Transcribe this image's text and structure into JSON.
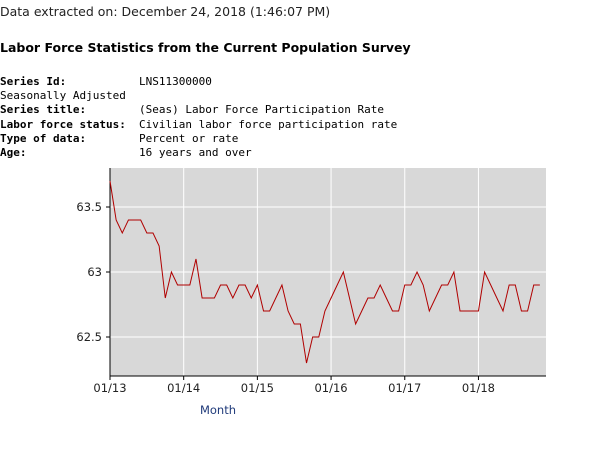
{
  "extract_line": "Data extracted on: December 24, 2018 (1:46:07 PM)",
  "page_title": "Labor Force Statistics from the Current Population Survey",
  "series_info": [
    {
      "label": "Series Id:",
      "value": "LNS11300000",
      "bold": true
    },
    {
      "label": "Seasonally Adjusted",
      "value": "",
      "bold": false
    },
    {
      "label": "Series title:",
      "value": "(Seas) Labor Force Participation Rate",
      "bold": true
    },
    {
      "label": "Labor force status:",
      "value": "Civilian labor force participation rate",
      "bold": true
    },
    {
      "label": "Type of data:",
      "value": "Percent or rate",
      "bold": true
    },
    {
      "label": "Age:",
      "value": "16 years and over",
      "bold": true
    }
  ],
  "colors": {
    "plot_background": "#d8d8d8",
    "grid": "#ffffff",
    "series_line": "#b00000",
    "axis": "#000000"
  },
  "chart_data": {
    "type": "line",
    "title": "",
    "xlabel": "Month",
    "ylabel": "",
    "x_range": [
      0,
      71
    ],
    "ylim": [
      62.2,
      63.8
    ],
    "y_ticks": [
      62.5,
      63,
      63.5
    ],
    "y_tick_labels": [
      "62.5",
      "63",
      "63.5"
    ],
    "x_ticks": [
      0,
      12,
      24,
      36,
      48,
      60
    ],
    "x_tick_labels": [
      "01/13",
      "01/14",
      "01/15",
      "01/16",
      "01/17",
      "01/18"
    ],
    "grid": true,
    "series": [
      {
        "name": "(Seas) Labor Force Participation Rate",
        "start": "01/13",
        "values": [
          63.7,
          63.4,
          63.3,
          63.4,
          63.4,
          63.4,
          63.3,
          63.3,
          63.2,
          62.8,
          63.0,
          62.9,
          62.9,
          62.9,
          63.1,
          62.8,
          62.8,
          62.8,
          62.9,
          62.9,
          62.8,
          62.9,
          62.9,
          62.8,
          62.9,
          62.7,
          62.7,
          62.8,
          62.9,
          62.7,
          62.6,
          62.6,
          62.3,
          62.5,
          62.5,
          62.7,
          62.8,
          62.9,
          63.0,
          62.8,
          62.6,
          62.7,
          62.8,
          62.8,
          62.9,
          62.8,
          62.7,
          62.7,
          62.9,
          62.9,
          63.0,
          62.9,
          62.7,
          62.8,
          62.9,
          62.9,
          63.0,
          62.7,
          62.7,
          62.7,
          62.7,
          63.0,
          62.9,
          62.8,
          62.7,
          62.9,
          62.9,
          62.7,
          62.7,
          62.9,
          62.9
        ]
      }
    ]
  }
}
